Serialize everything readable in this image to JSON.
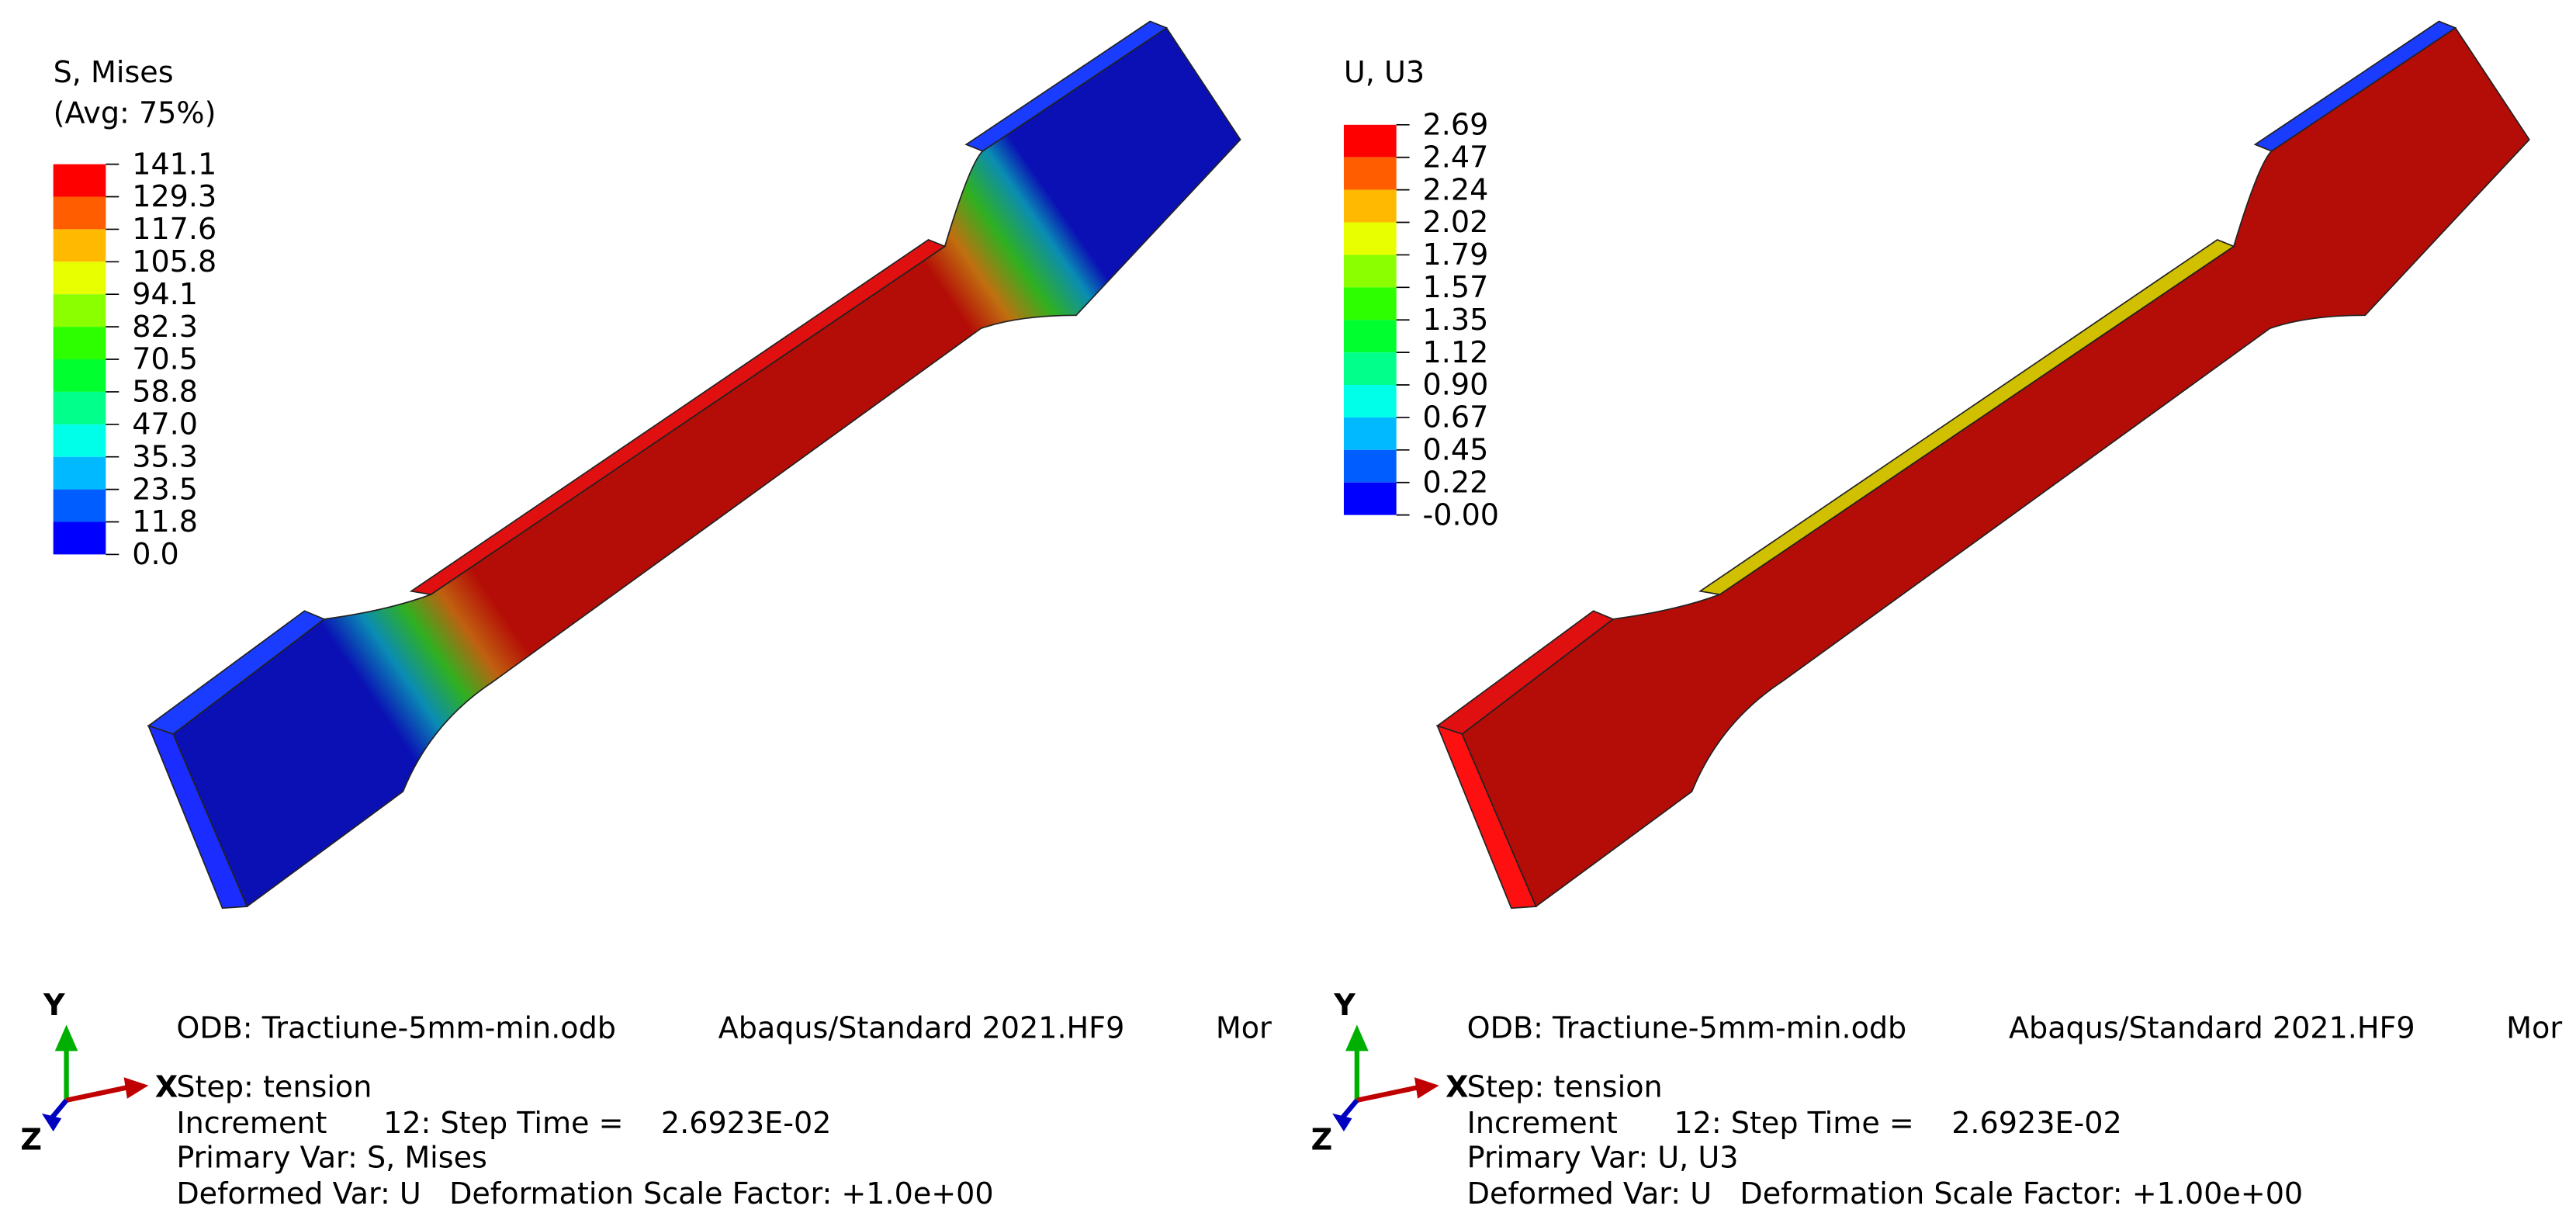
{
  "panels": [
    {
      "legend": {
        "title": [
          "S, Mises",
          "(Avg: 75%)"
        ],
        "labels": [
          "141.1",
          "129.3",
          "117.6",
          "105.8",
          "94.1",
          "82.3",
          "70.5",
          "58.8",
          "47.0",
          "35.3",
          "23.5",
          "11.8",
          "0.0"
        ],
        "colors": [
          "#ff0000",
          "#ff5d00",
          "#ffb900",
          "#e8ff00",
          "#8bff00",
          "#2eff00",
          "#00ff2e",
          "#00ff8b",
          "#00ffe8",
          "#00b9ff",
          "#005dff",
          "#0000ff"
        ]
      },
      "info": {
        "odb": "ODB: Tractiune-5mm-min.odb",
        "version": "Abaqus/Standard 2021.HF9",
        "date": "Mon",
        "lines": [
          "Step: tension",
          "Increment      12: Step Time =    2.6923E-02",
          "Primary Var: S, Mises",
          "Deformed Var: U   Deformation Scale Factor: +1.0e+00"
        ]
      },
      "triad": {
        "x": "X",
        "y": "Y",
        "z": "Z"
      }
    },
    {
      "legend": {
        "title": [
          "U, U3"
        ],
        "labels": [
          "2.69",
          "2.47",
          "2.24",
          "2.02",
          "1.79",
          "1.57",
          "1.35",
          "1.12",
          "0.90",
          "0.67",
          "0.45",
          "0.22",
          "-0.00"
        ],
        "colors": [
          "#ff0000",
          "#ff5d00",
          "#ffb900",
          "#e8ff00",
          "#8bff00",
          "#2eff00",
          "#00ff2e",
          "#00ff8b",
          "#00ffe8",
          "#00b9ff",
          "#005dff",
          "#0000ff"
        ]
      },
      "info": {
        "odb": "ODB: Tractiune-5mm-min.odb",
        "version": "Abaqus/Standard 2021.HF9",
        "date": "Mon",
        "lines": [
          "Step: tension",
          "Increment      12: Step Time =    2.6923E-02",
          "Primary Var: U, U3",
          "Deformed Var: U   Deformation Scale Factor: +1.00e+00"
        ]
      },
      "triad": {
        "x": "X",
        "y": "Y",
        "z": "Z"
      }
    }
  ]
}
